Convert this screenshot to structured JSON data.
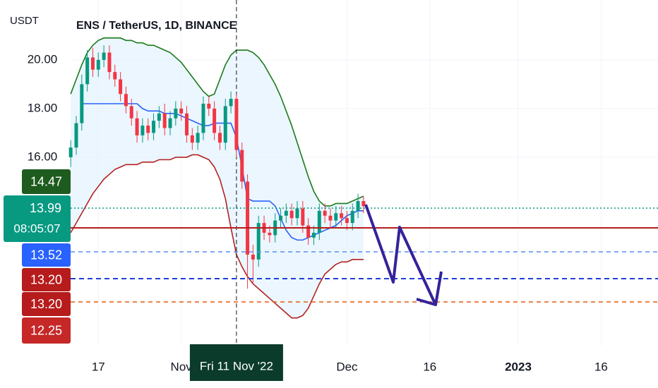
{
  "chart_data": {
    "type": "candlestick",
    "title": "ENS / TetherUS, 1D, BINANCE",
    "y_axis_label": "USDT",
    "ylim": [
      8.26,
      22.46
    ],
    "yticks": [
      {
        "value": 20,
        "label": "20.00"
      },
      {
        "value": 18,
        "label": "18.00"
      },
      {
        "value": 16,
        "label": "16.00"
      }
    ],
    "xlim": [
      -12.8,
      106.3
    ],
    "xticks": [
      {
        "value": 5,
        "label": "17"
      },
      {
        "value": 20,
        "label": "Nov"
      },
      {
        "value": 50,
        "label": "Dec"
      },
      {
        "value": 65,
        "label": "16"
      },
      {
        "value": 81,
        "label": "2023"
      },
      {
        "value": 96,
        "label": "16"
      }
    ],
    "grid": true,
    "up_color": "#089981",
    "down_color": "#f23645",
    "x": [
      0,
      1,
      2,
      3,
      4,
      5,
      6,
      7,
      8,
      9,
      10,
      11,
      12,
      13,
      14,
      15,
      16,
      17,
      18,
      19,
      20,
      21,
      22,
      23,
      24,
      25,
      26,
      27,
      28,
      29,
      30,
      31,
      32,
      33,
      34,
      35,
      36,
      37,
      38,
      39,
      40,
      41,
      42,
      43,
      44,
      45,
      46,
      47,
      48,
      49,
      50,
      51,
      52,
      53
    ],
    "open": [
      16.0,
      16.4,
      17.4,
      19.0,
      20.1,
      19.6,
      20.0,
      20.3,
      19.5,
      19.2,
      18.6,
      18.1,
      17.6,
      16.9,
      17.3,
      17.0,
      17.5,
      17.8,
      17.2,
      17.6,
      18.0,
      17.8,
      16.9,
      16.6,
      17.0,
      18.2,
      18.0,
      17.0,
      16.6,
      18.1,
      18.4,
      16.3,
      15.0,
      12.0,
      11.8,
      13.3,
      12.9,
      12.8,
      13.4,
      13.6,
      13.8,
      13.5,
      13.9,
      13.2,
      12.7,
      12.9,
      13.8,
      13.6,
      13.4,
      13.7,
      13.5,
      13.3,
      13.8,
      14.2
    ],
    "high": [
      16.7,
      17.7,
      19.4,
      20.4,
      20.5,
      20.3,
      20.6,
      20.6,
      19.8,
      19.5,
      18.9,
      18.4,
      17.9,
      17.6,
      17.6,
      17.8,
      18.1,
      18.2,
      17.9,
      18.3,
      18.3,
      18.1,
      17.2,
      17.3,
      18.5,
      18.5,
      18.3,
      17.3,
      18.4,
      18.7,
      18.6,
      16.6,
      15.3,
      12.4,
      13.6,
      13.6,
      13.2,
      13.7,
      13.9,
      14.1,
      14.1,
      14.2,
      14.2,
      13.5,
      13.2,
      14.1,
      14.1,
      13.9,
      14.0,
      14.0,
      13.8,
      14.1,
      14.5,
      14.4
    ],
    "low": [
      15.6,
      16.1,
      17.1,
      18.7,
      19.3,
      19.3,
      19.7,
      19.2,
      18.9,
      18.3,
      17.8,
      17.3,
      16.6,
      16.6,
      16.7,
      16.7,
      17.2,
      16.9,
      16.9,
      17.3,
      17.5,
      16.6,
      16.3,
      16.3,
      16.7,
      17.7,
      16.7,
      16.3,
      16.3,
      17.8,
      16.0,
      14.7,
      10.6,
      10.8,
      11.5,
      12.6,
      12.5,
      12.5,
      13.1,
      13.3,
      13.2,
      13.2,
      12.9,
      12.4,
      12.4,
      12.6,
      13.3,
      13.1,
      13.1,
      13.2,
      13.0,
      13.0,
      13.5,
      13.7
    ],
    "close": [
      16.4,
      17.4,
      19.0,
      20.1,
      19.6,
      20.0,
      20.3,
      19.5,
      19.2,
      18.6,
      18.1,
      17.6,
      16.9,
      17.3,
      17.0,
      17.5,
      17.8,
      17.2,
      17.6,
      18.0,
      17.8,
      16.9,
      16.6,
      17.0,
      18.2,
      18.0,
      17.0,
      16.6,
      18.1,
      18.4,
      16.3,
      15.0,
      12.0,
      11.8,
      13.3,
      12.9,
      12.8,
      13.4,
      13.6,
      13.8,
      13.5,
      13.9,
      13.2,
      12.7,
      12.9,
      13.8,
      13.6,
      13.4,
      13.7,
      13.5,
      13.3,
      13.8,
      14.2,
      13.99
    ],
    "lines": [
      {
        "color": "#1b7a1b",
        "values": [
          18.6,
          19.2,
          19.8,
          20.3,
          20.6,
          20.8,
          20.9,
          20.9,
          20.9,
          20.9,
          20.8,
          20.8,
          20.7,
          20.7,
          20.6,
          20.6,
          20.5,
          20.4,
          20.3,
          20.1,
          19.9,
          19.6,
          19.3,
          19.0,
          18.7,
          18.5,
          18.6,
          19.2,
          19.8,
          20.2,
          20.4,
          20.4,
          20.4,
          20.3,
          20.1,
          19.8,
          19.4,
          19.0,
          18.5,
          17.9,
          17.3,
          16.6,
          15.9,
          15.2,
          14.6,
          14.2,
          14.0,
          14.0,
          14.1,
          14.1,
          14.1,
          14.2,
          14.3,
          14.4
        ]
      },
      {
        "color": "#2962ff",
        "values": [
          null,
          null,
          18.2,
          18.2,
          18.2,
          18.2,
          18.2,
          18.2,
          18.2,
          18.2,
          18.2,
          18.2,
          18.2,
          18.0,
          17.9,
          17.9,
          17.9,
          17.8,
          17.8,
          17.8,
          17.7,
          17.6,
          17.5,
          17.4,
          17.3,
          17.3,
          17.4,
          17.4,
          17.4,
          17.4,
          16.8,
          15.6,
          14.3,
          14.2,
          14.2,
          14.2,
          14.2,
          14.0,
          13.5,
          13.0,
          12.7,
          12.6,
          12.6,
          12.7,
          12.8,
          12.9,
          13.0,
          13.1,
          13.2,
          13.4,
          13.6,
          13.7,
          13.8,
          13.8
        ]
      },
      {
        "color": "#b22222",
        "values": [
          12.9,
          13.3,
          13.7,
          14.1,
          14.5,
          14.8,
          15.1,
          15.3,
          15.5,
          15.6,
          15.7,
          15.7,
          15.7,
          15.8,
          15.8,
          15.8,
          15.9,
          15.9,
          15.9,
          16.0,
          16.0,
          16.0,
          16.1,
          16.1,
          16.0,
          15.9,
          15.6,
          15.1,
          14.3,
          13.1,
          12.0,
          11.5,
          11.1,
          10.8,
          10.6,
          10.4,
          10.2,
          10.0,
          9.8,
          9.6,
          9.4,
          9.4,
          9.5,
          9.8,
          10.3,
          10.8,
          11.2,
          11.4,
          11.6,
          11.7,
          11.7,
          11.8,
          11.8,
          11.8
        ]
      }
    ],
    "band_fill": "#e3f2fd",
    "crosshair": {
      "x": 30,
      "label": "Fri 11 Nov '22"
    },
    "price_tags": [
      {
        "label": "14.47",
        "color": "#1e5b1e"
      },
      {
        "label": "13.99",
        "sublabel": "08:05:07",
        "color": "#089981"
      },
      {
        "label": "13.52",
        "color": "#2962ff"
      },
      {
        "label": "13.20",
        "color": "#b71c1c"
      },
      {
        "label": "13.20",
        "color": "#b71c1c"
      },
      {
        "label": "12.25",
        "color": "#c62828"
      }
    ]
  }
}
